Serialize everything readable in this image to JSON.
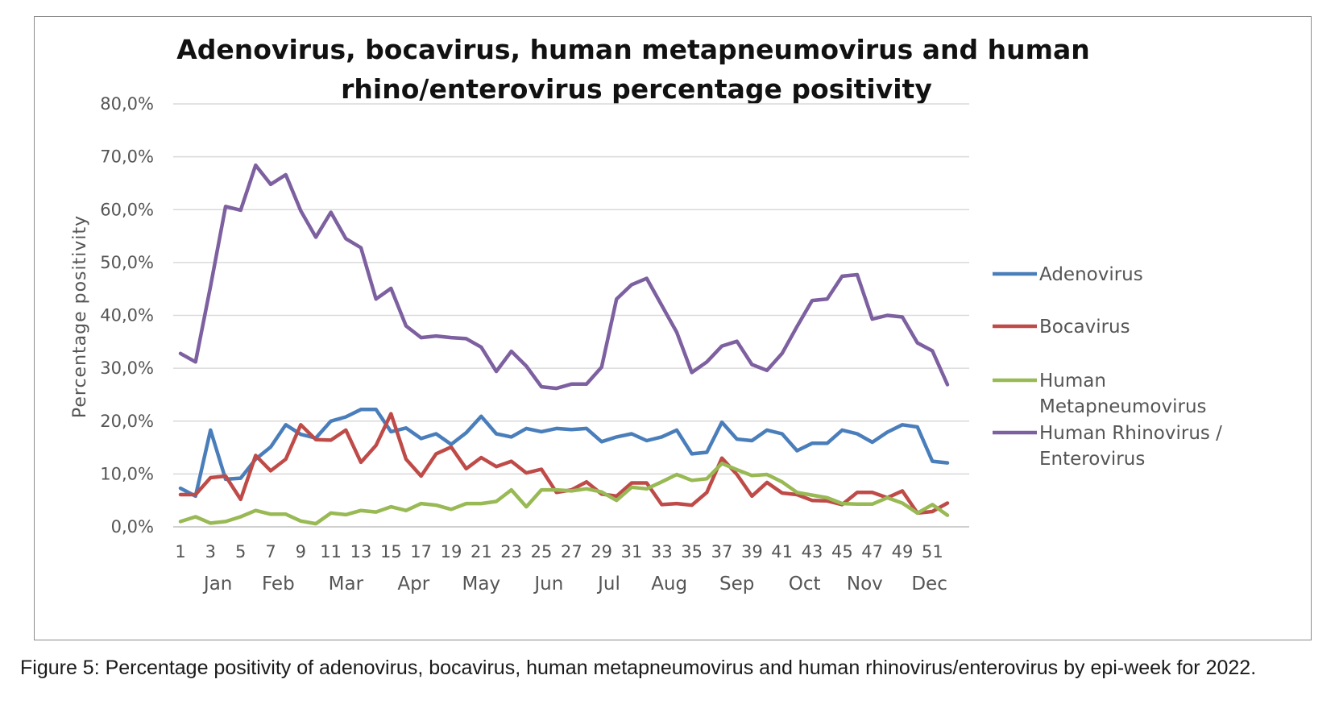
{
  "chart_data": {
    "type": "line",
    "title_lines": [
      "Adenovirus, bocavirus, human metapneumovirus and human",
      "rhino/enterovirus percentage positivity"
    ],
    "ylabel": "Percentage positivity",
    "xlabel": "",
    "ylim": [
      0,
      80
    ],
    "yticks": [
      0,
      10,
      20,
      30,
      40,
      50,
      60,
      70,
      80
    ],
    "ytick_labels": [
      "0,0%",
      "10,0%",
      "20,0%",
      "30,0%",
      "40,0%",
      "50,0%",
      "60,0%",
      "70,0%",
      "80,0%"
    ],
    "x": [
      1,
      2,
      3,
      4,
      5,
      6,
      7,
      8,
      9,
      10,
      11,
      12,
      13,
      14,
      15,
      16,
      17,
      18,
      19,
      20,
      21,
      22,
      23,
      24,
      25,
      26,
      27,
      28,
      29,
      30,
      31,
      32,
      33,
      34,
      35,
      36,
      37,
      38,
      39,
      40,
      41,
      42,
      43,
      44,
      45,
      46,
      47,
      48,
      49,
      50,
      51,
      52
    ],
    "xtick_labels": [
      "1",
      "3",
      "5",
      "7",
      "9",
      "11",
      "13",
      "15",
      "17",
      "19",
      "21",
      "23",
      "25",
      "27",
      "29",
      "31",
      "33",
      "35",
      "37",
      "39",
      "41",
      "43",
      "45",
      "47",
      "49",
      "51"
    ],
    "months": [
      {
        "label": "Jan",
        "week": 3.5
      },
      {
        "label": "Feb",
        "week": 7.5
      },
      {
        "label": "Mar",
        "week": 12
      },
      {
        "label": "Apr",
        "week": 16.5
      },
      {
        "label": "May",
        "week": 21
      },
      {
        "label": "Jun",
        "week": 25.5
      },
      {
        "label": "Jul",
        "week": 29.5
      },
      {
        "label": "Aug",
        "week": 33.5
      },
      {
        "label": "Sep",
        "week": 38
      },
      {
        "label": "Oct",
        "week": 42.5
      },
      {
        "label": "Nov",
        "week": 46.5
      },
      {
        "label": "Dec",
        "week": 50.8
      }
    ],
    "grid": true,
    "legend_position": "right",
    "series": [
      {
        "name": "Adenovirus",
        "color": "#4a7ebb",
        "values": [
          7.3,
          5.8,
          18.3,
          9.0,
          9.2,
          12.8,
          15.1,
          19.3,
          17.5,
          16.8,
          20.0,
          20.8,
          22.2,
          22.2,
          18.0,
          18.7,
          16.7,
          17.6,
          15.6,
          17.8,
          20.9,
          17.6,
          17.0,
          18.6,
          18.0,
          18.6,
          18.4,
          18.6,
          16.1,
          17.0,
          17.6,
          16.3,
          17.0,
          18.3,
          13.8,
          14.1,
          19.8,
          16.6,
          16.3,
          18.3,
          17.6,
          14.4,
          15.8,
          15.8,
          18.3,
          17.6,
          16.0,
          17.9,
          19.3,
          18.9,
          12.4,
          12.1
        ]
      },
      {
        "name": "Bocavirus",
        "color": "#be4b48",
        "values": [
          6.1,
          6.1,
          9.3,
          9.6,
          5.2,
          13.5,
          10.6,
          12.8,
          19.3,
          16.5,
          16.4,
          18.3,
          12.2,
          15.4,
          21.4,
          12.8,
          9.6,
          13.8,
          15.1,
          11.0,
          13.1,
          11.4,
          12.4,
          10.2,
          10.9,
          6.5,
          7.0,
          8.5,
          6.2,
          5.8,
          8.3,
          8.3,
          4.2,
          4.4,
          4.1,
          6.5,
          13.0,
          9.9,
          5.8,
          8.4,
          6.4,
          6.1,
          5.0,
          4.9,
          4.2,
          6.5,
          6.5,
          5.5,
          6.8,
          2.6,
          2.9,
          4.5
        ]
      },
      {
        "name": "Human Metapneumovirus",
        "name_lines": [
          "Human",
          "Metapneumovirus"
        ],
        "color": "#98b954",
        "values": [
          1.0,
          1.9,
          0.7,
          1.0,
          1.9,
          3.1,
          2.4,
          2.4,
          1.1,
          0.6,
          2.6,
          2.3,
          3.1,
          2.8,
          3.8,
          3.1,
          4.4,
          4.1,
          3.3,
          4.4,
          4.4,
          4.8,
          7.0,
          3.8,
          7.0,
          7.0,
          6.8,
          7.2,
          6.6,
          5.0,
          7.5,
          7.2,
          8.5,
          9.9,
          8.8,
          9.1,
          12.0,
          10.8,
          9.7,
          9.9,
          8.5,
          6.5,
          6.0,
          5.5,
          4.4,
          4.3,
          4.3,
          5.5,
          4.5,
          2.6,
          4.2,
          2.2
        ]
      },
      {
        "name": "Human Rhinovirus / Enterovirus",
        "name_lines": [
          "Human Rhinovirus /",
          "Enterovirus"
        ],
        "color": "#7d60a0",
        "values": [
          32.8,
          31.2,
          45.5,
          60.6,
          59.9,
          68.4,
          64.8,
          66.6,
          59.8,
          54.8,
          59.5,
          54.5,
          52.8,
          43.1,
          45.1,
          38.0,
          35.8,
          36.1,
          35.8,
          35.6,
          34.0,
          29.4,
          33.2,
          30.4,
          26.5,
          26.2,
          27.0,
          27.0,
          30.2,
          43.1,
          45.8,
          47.0,
          41.9,
          36.8,
          29.2,
          31.2,
          34.2,
          35.1,
          30.7,
          29.6,
          32.8,
          37.9,
          42.8,
          43.1,
          47.4,
          47.7,
          39.3,
          40.0,
          39.7,
          34.8,
          33.3,
          26.9
        ]
      }
    ]
  },
  "caption": "Figure 5: Percentage positivity of adenovirus, bocavirus, human metapneumovirus and human rhinovirus/enterovirus by epi-week for 2022."
}
